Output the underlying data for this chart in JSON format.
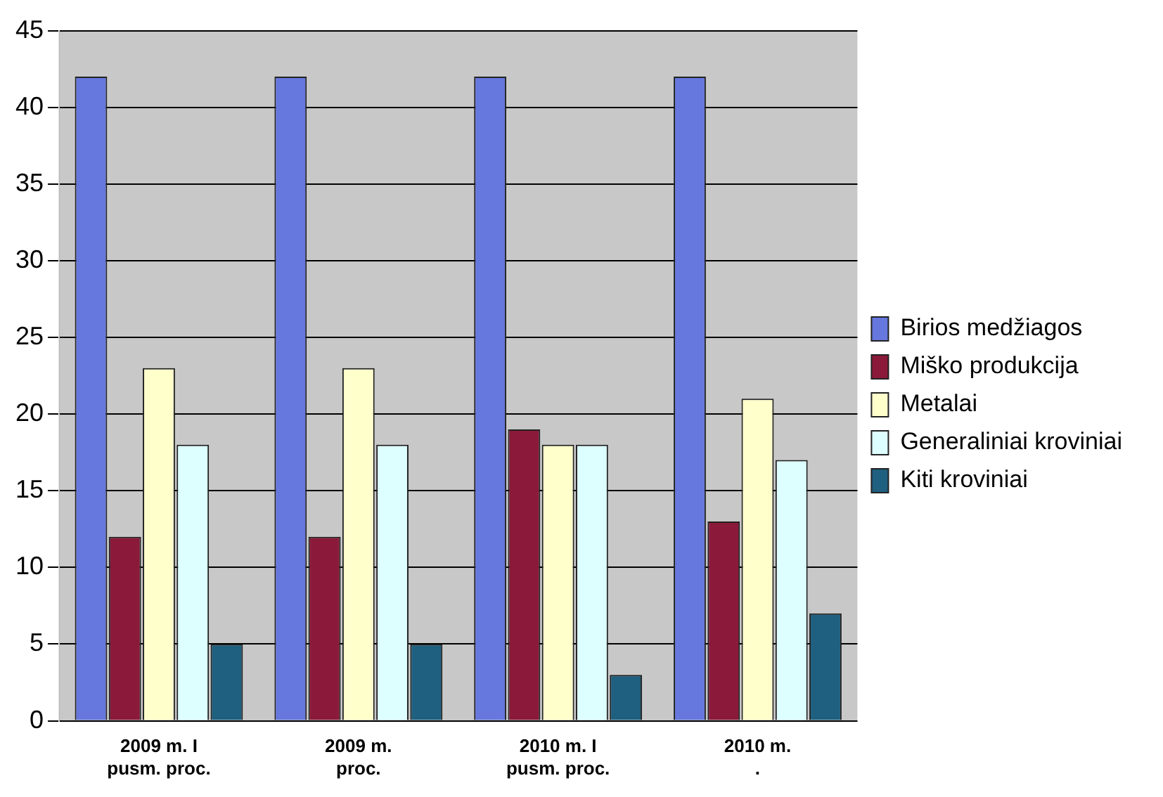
{
  "chart_data": {
    "type": "bar",
    "categories": [
      "2009 m. I pusm. proc.",
      "2009 m. proc.",
      "2010 m. I pusm. proc.",
      "2010 m. ."
    ],
    "series": [
      {
        "name": "Birios medžiagos",
        "color": "#6677dd",
        "values": [
          42,
          42,
          42,
          42
        ]
      },
      {
        "name": "Miško produkcija",
        "color": "#8b1a3a",
        "values": [
          12,
          12,
          19,
          13
        ]
      },
      {
        "name": "Metalai",
        "color": "#ffffcc",
        "values": [
          23,
          23,
          18,
          21
        ]
      },
      {
        "name": "Generaliniai kroviniai",
        "color": "#ddffff",
        "values": [
          18,
          18,
          18,
          17
        ]
      },
      {
        "name": "Kiti kroviniai",
        "color": "#1f5f7f",
        "values": [
          5,
          5,
          3,
          7
        ]
      }
    ],
    "ylim": [
      0,
      45
    ],
    "yticks": [
      0,
      5,
      10,
      15,
      20,
      25,
      30,
      35,
      40,
      45
    ],
    "grid": "y",
    "legend": "right"
  }
}
